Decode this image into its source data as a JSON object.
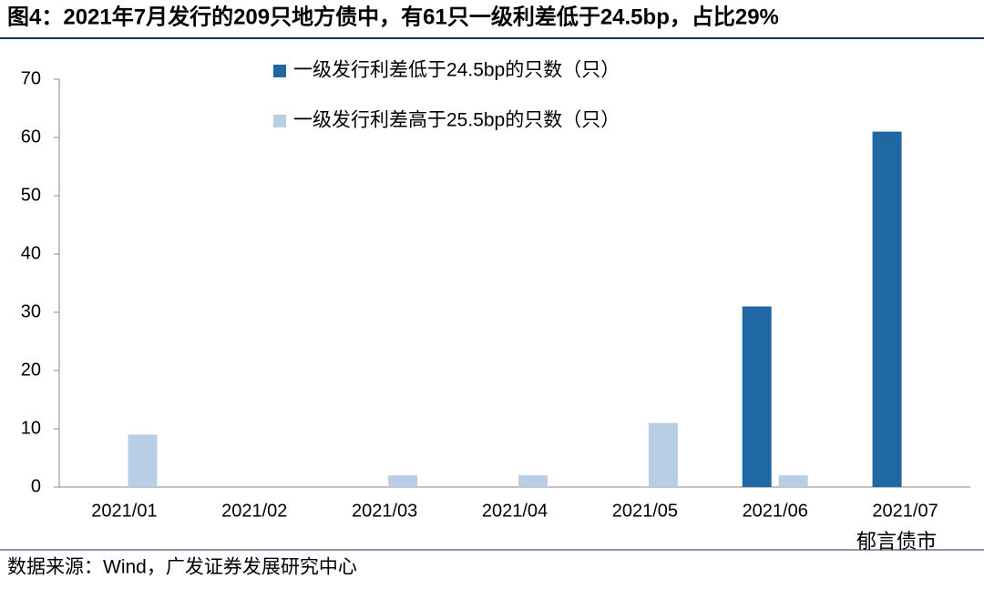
{
  "title": "图4：2021年7月发行的209只地方债中，有61只一级利差低于24.5bp，占比29%",
  "source": "数据来源：Wind，广发证券发展研究中心",
  "watermark": "郁言债市",
  "chart_data": {
    "type": "bar",
    "categories": [
      "2021/01",
      "2021/02",
      "2021/03",
      "2021/04",
      "2021/05",
      "2021/06",
      "2021/07"
    ],
    "series": [
      {
        "name": "一级发行利差低于24.5bp的只数（只）",
        "color": "#1f68a4",
        "values": [
          0,
          0,
          0,
          0,
          0,
          31,
          61
        ]
      },
      {
        "name": "一级发行利差高于25.5bp的只数（只）",
        "color": "#b9cde5",
        "values": [
          9,
          0,
          2,
          2,
          11,
          2,
          0
        ]
      }
    ],
    "ylim": [
      0,
      70
    ],
    "yticks": [
      0,
      10,
      20,
      30,
      40,
      50,
      60,
      70
    ],
    "grid": false
  }
}
